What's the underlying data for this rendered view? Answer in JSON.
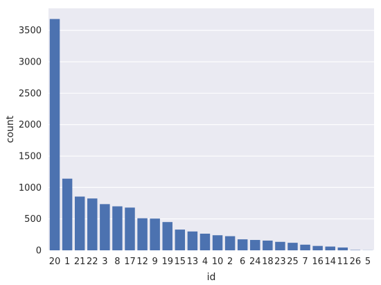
{
  "chart_data": {
    "type": "bar",
    "title": "",
    "xlabel": "id",
    "ylabel": "count",
    "categories": [
      "20",
      "1",
      "21",
      "22",
      "3",
      "8",
      "17",
      "12",
      "9",
      "19",
      "15",
      "13",
      "4",
      "10",
      "2",
      "6",
      "24",
      "18",
      "23",
      "25",
      "7",
      "16",
      "14",
      "11",
      "26",
      "5"
    ],
    "values": [
      3680,
      1140,
      855,
      825,
      735,
      700,
      680,
      510,
      505,
      450,
      330,
      300,
      265,
      240,
      225,
      175,
      165,
      155,
      135,
      120,
      90,
      70,
      60,
      45,
      5,
      2
    ],
    "ylim": [
      0,
      3850
    ],
    "yticks": [
      0,
      500,
      1000,
      1500,
      2000,
      2500,
      3000,
      3500
    ],
    "grid": true,
    "colors": {
      "background": "#eaeaf2",
      "bar": "#4c72b0",
      "grid": "#ffffff"
    }
  }
}
